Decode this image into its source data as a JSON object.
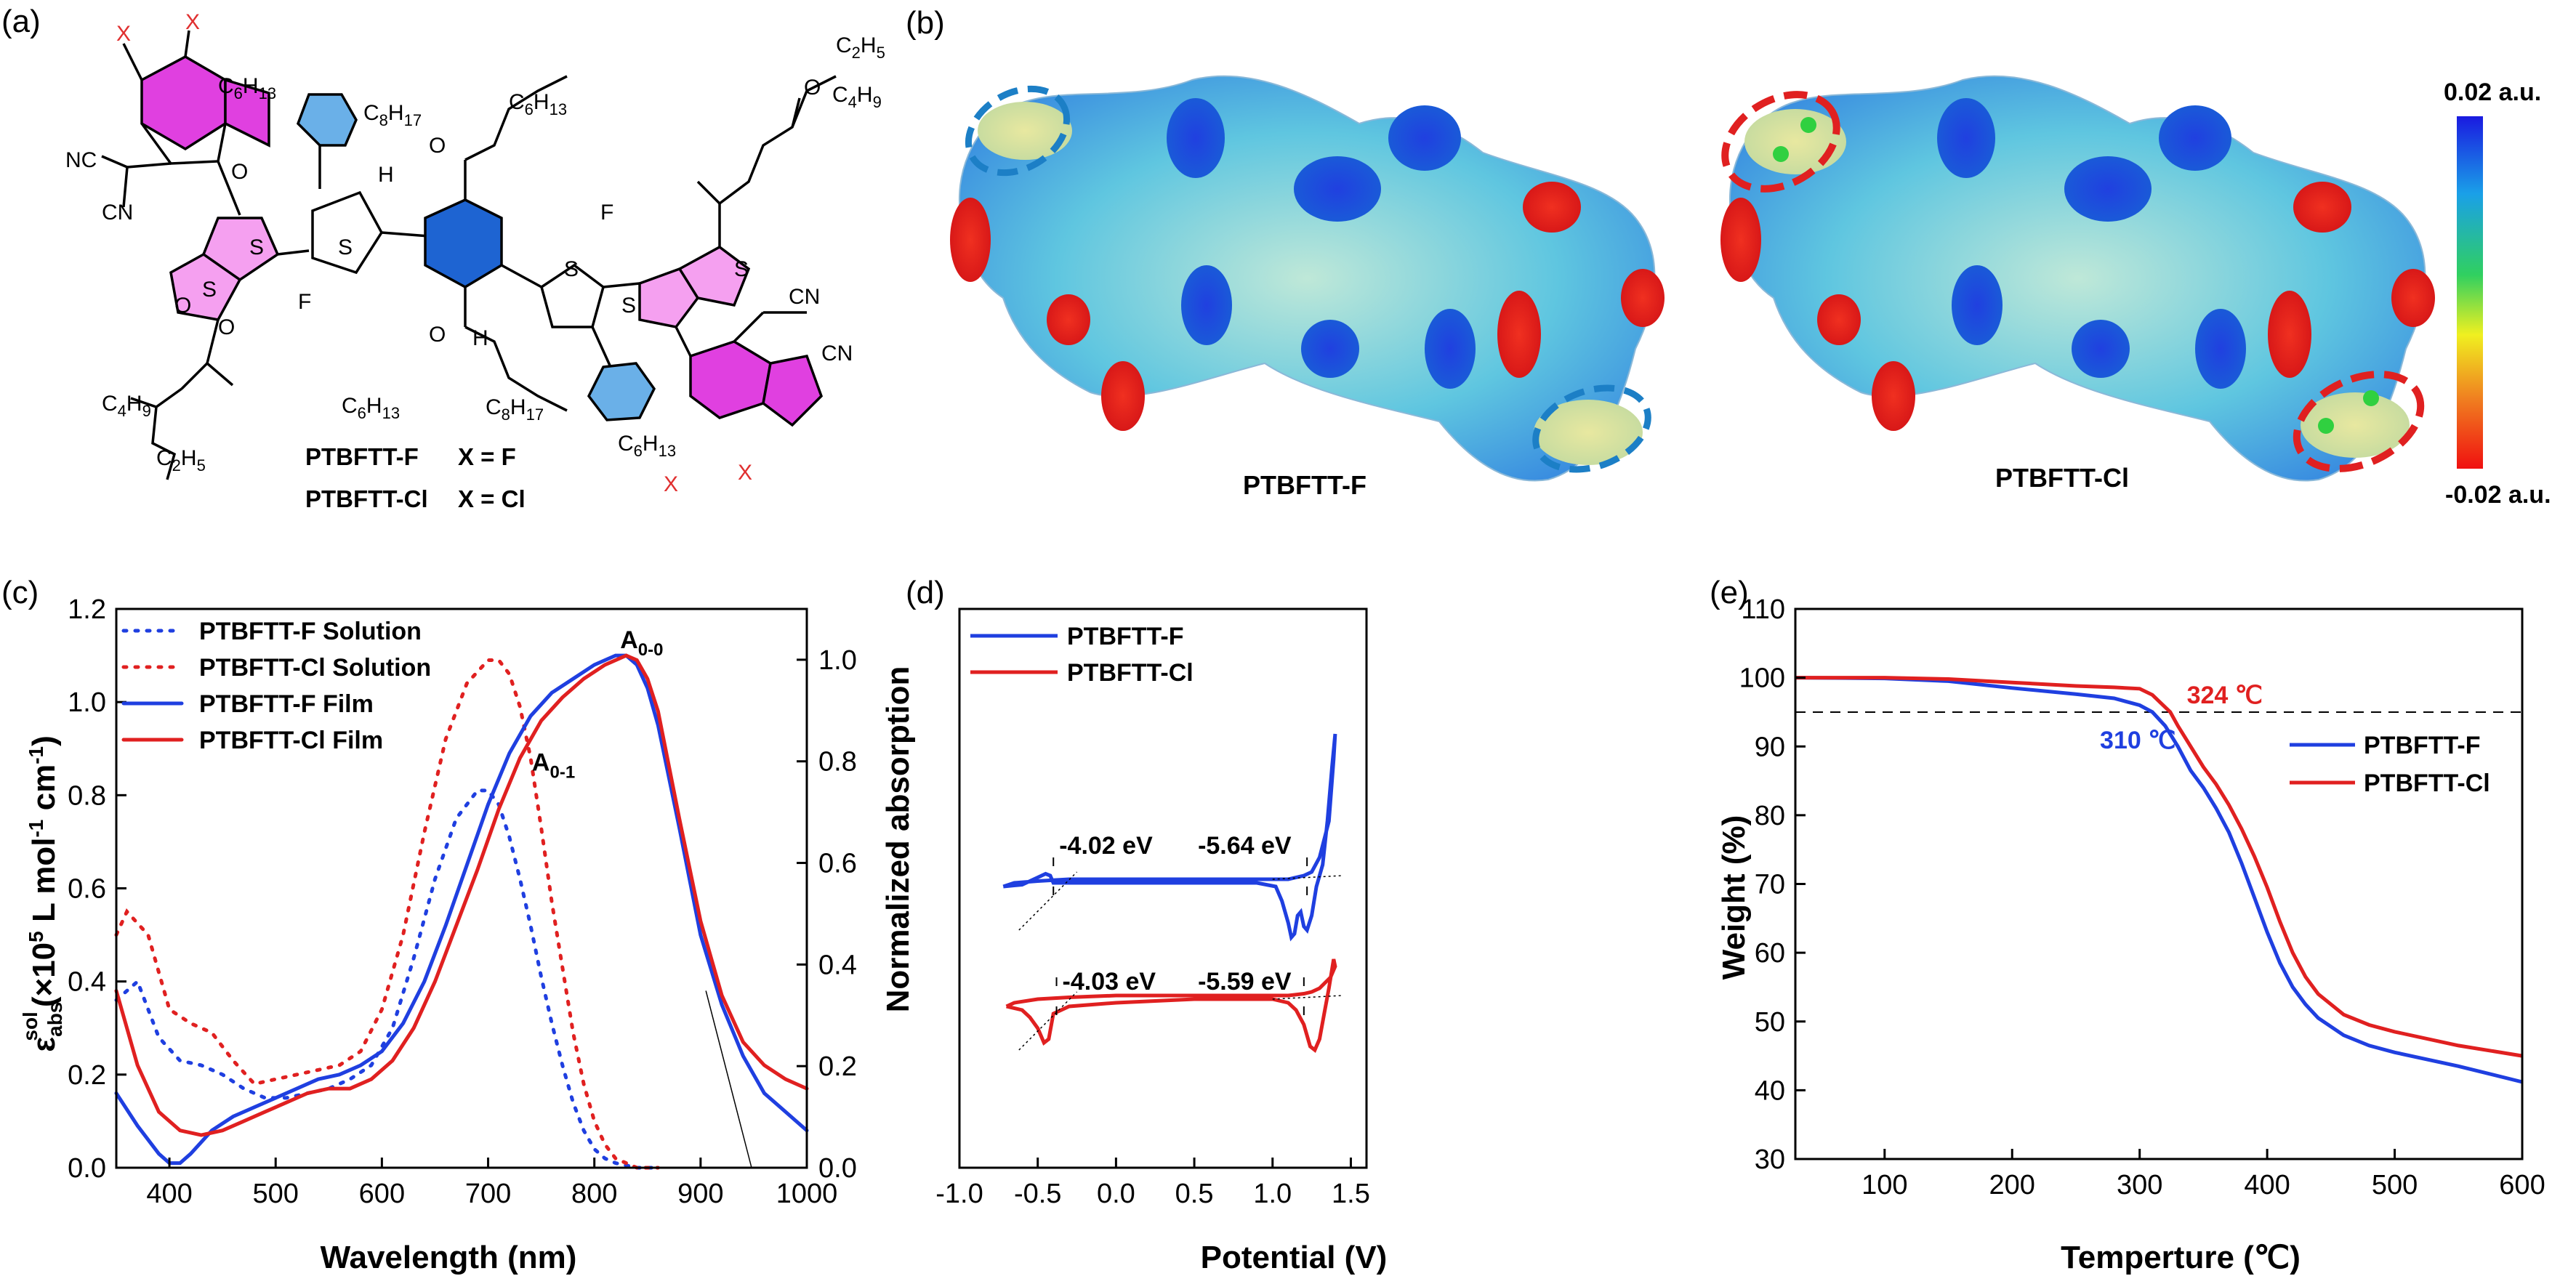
{
  "panels": {
    "a": "(a)",
    "b": "(b)",
    "c": "(c)",
    "d": "(d)",
    "e": "(e)"
  },
  "molecule": {
    "atoms": [
      "X",
      "X",
      "O",
      "O",
      "O",
      "O",
      "O",
      "O",
      "S",
      "S",
      "S",
      "S",
      "S",
      "S",
      "H",
      "H",
      "F",
      "F",
      "N",
      "N",
      "N",
      "N"
    ],
    "atom_labels": {
      "X": "X",
      "O": "O",
      "S": "S",
      "H": "H",
      "F": "F",
      "CN": "CN",
      "NC": "NC",
      "C6H13": "C6H13",
      "C8H17": "C8H17",
      "C4H9": "C4H9",
      "C2H5": "C2H5"
    },
    "subscript_labels": [
      {
        "main": "C",
        "sub": "6",
        "main2": "H",
        "sub2": "13"
      },
      {
        "main": "C",
        "sub": "8",
        "main2": "H",
        "sub2": "17"
      },
      {
        "main": "C",
        "sub": "4",
        "main2": "H",
        "sub2": "9"
      },
      {
        "main": "C",
        "sub": "2",
        "main2": "H",
        "sub2": "5"
      }
    ],
    "legend": [
      {
        "name": "PTBFTT-F",
        "x": "X = F"
      },
      {
        "name": "PTBFTT-Cl",
        "x": "X = Cl"
      }
    ],
    "colors": {
      "fluorinated_ring": "#e040e0",
      "thiophene": "#f5a0f0",
      "center": "#1e64d2",
      "phenyl": "#6ab0e8",
      "x_atom": "#e03030"
    }
  },
  "esp": {
    "labels": [
      "PTBFTT-F",
      "PTBFTT-Cl"
    ],
    "scale_top": "0.02 a.u.",
    "scale_bottom": "-0.02 a.u.",
    "highlight_colors": {
      "PTBFTT-F": "#1c7fc6",
      "PTBFTT-Cl": "#e02020"
    }
  },
  "chart_data": [
    {
      "id": "c",
      "type": "line",
      "xlabel": "Wavelength (nm)",
      "ylabel_left_parts": [
        "ε",
        "abs",
        "sol",
        "(×10",
        "5",
        " L mol",
        "-1",
        " cm",
        "-1",
        ")"
      ],
      "ylabel_right": "Normalized absorption",
      "xlim": [
        350,
        1000
      ],
      "ylim_left": [
        0,
        1.2
      ],
      "ylim_right": [
        0,
        1.1
      ],
      "xticks": [
        400,
        500,
        600,
        700,
        800,
        900,
        1000
      ],
      "yticks_left": [
        0.0,
        0.2,
        0.4,
        0.6,
        0.8,
        1.0,
        1.2
      ],
      "yticks_right": [
        0.0,
        0.2,
        0.4,
        0.6,
        0.8,
        1.0
      ],
      "annotations": [
        {
          "text": "A",
          "sub": "0-0",
          "x": 838,
          "y": 1.1
        },
        {
          "text": "A",
          "sub": "0-1",
          "x": 755,
          "y": 0.9
        }
      ],
      "series": [
        {
          "name": "PTBFTT-F Solution",
          "color": "#1f3fe0",
          "dash": true,
          "axis": "left",
          "x": [
            350,
            370,
            390,
            410,
            430,
            450,
            470,
            490,
            510,
            530,
            550,
            570,
            590,
            610,
            630,
            650,
            670,
            690,
            700,
            710,
            720,
            730,
            740,
            750,
            760,
            770,
            780,
            790,
            800,
            810,
            820,
            840,
            860
          ],
          "y": [
            0.36,
            0.4,
            0.28,
            0.23,
            0.22,
            0.2,
            0.17,
            0.15,
            0.15,
            0.16,
            0.17,
            0.19,
            0.22,
            0.3,
            0.45,
            0.62,
            0.75,
            0.81,
            0.81,
            0.78,
            0.71,
            0.62,
            0.52,
            0.41,
            0.31,
            0.22,
            0.14,
            0.08,
            0.04,
            0.02,
            0.01,
            0.0,
            0.0
          ]
        },
        {
          "name": "PTBFTT-Cl Solution",
          "color": "#e02020",
          "dash": true,
          "axis": "left",
          "x": [
            350,
            360,
            380,
            400,
            420,
            440,
            460,
            480,
            500,
            520,
            540,
            560,
            580,
            600,
            620,
            640,
            660,
            680,
            700,
            710,
            720,
            730,
            740,
            750,
            760,
            770,
            780,
            790,
            800,
            810,
            820,
            830,
            840,
            860
          ],
          "y": [
            0.5,
            0.55,
            0.5,
            0.34,
            0.31,
            0.29,
            0.23,
            0.18,
            0.19,
            0.2,
            0.21,
            0.22,
            0.25,
            0.34,
            0.5,
            0.72,
            0.92,
            1.04,
            1.09,
            1.09,
            1.06,
            0.99,
            0.88,
            0.73,
            0.57,
            0.43,
            0.29,
            0.18,
            0.1,
            0.05,
            0.02,
            0.01,
            0.0,
            0.0
          ]
        },
        {
          "name": "PTBFTT-F Film",
          "color": "#1f3fe0",
          "dash": false,
          "axis": "left",
          "x": [
            350,
            370,
            390,
            400,
            410,
            420,
            440,
            460,
            480,
            500,
            520,
            540,
            560,
            580,
            600,
            620,
            640,
            660,
            680,
            700,
            720,
            740,
            760,
            780,
            800,
            820,
            830,
            840,
            850,
            860,
            880,
            900,
            920,
            940,
            960,
            980,
            1000
          ],
          "y": [
            0.16,
            0.09,
            0.03,
            0.01,
            0.01,
            0.03,
            0.08,
            0.11,
            0.13,
            0.15,
            0.17,
            0.19,
            0.2,
            0.22,
            0.25,
            0.31,
            0.4,
            0.52,
            0.65,
            0.78,
            0.89,
            0.97,
            1.02,
            1.05,
            1.08,
            1.1,
            1.1,
            1.08,
            1.03,
            0.95,
            0.73,
            0.5,
            0.35,
            0.24,
            0.16,
            0.12,
            0.08
          ]
        },
        {
          "name": "PTBFTT-Cl Film",
          "color": "#e02020",
          "dash": false,
          "axis": "left",
          "x": [
            350,
            370,
            390,
            410,
            430,
            450,
            470,
            490,
            510,
            530,
            550,
            570,
            590,
            610,
            630,
            650,
            670,
            690,
            710,
            730,
            750,
            770,
            790,
            810,
            830,
            840,
            850,
            860,
            880,
            900,
            920,
            940,
            960,
            980,
            1000
          ],
          "y": [
            0.38,
            0.22,
            0.12,
            0.08,
            0.07,
            0.08,
            0.1,
            0.12,
            0.14,
            0.16,
            0.17,
            0.17,
            0.19,
            0.23,
            0.3,
            0.4,
            0.52,
            0.64,
            0.77,
            0.88,
            0.96,
            1.01,
            1.05,
            1.08,
            1.1,
            1.09,
            1.05,
            0.98,
            0.75,
            0.53,
            0.37,
            0.27,
            0.22,
            0.19,
            0.17
          ]
        }
      ]
    },
    {
      "id": "d",
      "type": "line",
      "xlabel": "Potential (V)",
      "xlim": [
        -1.0,
        1.6
      ],
      "xticks": [
        -1.0,
        -0.5,
        0.0,
        0.5,
        1.0,
        1.5
      ],
      "annotations": [
        {
          "text": "-4.02 eV",
          "series": "PTBFTT-F",
          "x": -0.4
        },
        {
          "text": "-5.64 eV",
          "series": "PTBFTT-F",
          "x": 1.22
        },
        {
          "text": "-4.03 eV",
          "series": "PTBFTT-Cl",
          "x": -0.38
        },
        {
          "text": "-5.59 eV",
          "series": "PTBFTT-Cl",
          "x": 1.2
        }
      ],
      "series": [
        {
          "name": "PTBFTT-F",
          "color": "#1f3fe0",
          "x": [
            -0.72,
            -0.6,
            -0.5,
            -0.45,
            -0.42,
            -0.4,
            -0.3,
            0.0,
            0.5,
            0.9,
            1.02,
            1.06,
            1.1,
            1.12,
            1.14,
            1.16,
            1.18,
            1.2,
            1.22,
            1.25,
            1.28,
            1.32,
            1.35,
            1.38,
            1.4,
            1.39,
            1.36,
            1.3,
            1.25,
            1.2,
            1.1,
            0.9,
            0.5,
            0.0,
            -0.3,
            -0.5,
            -0.65,
            -0.72
          ],
          "y": [
            0,
            0.005,
            0.025,
            0.035,
            0.03,
            0.01,
            0.01,
            0.01,
            0.01,
            0.01,
            0.0,
            -0.04,
            -0.1,
            -0.14,
            -0.13,
            -0.08,
            -0.07,
            -0.11,
            -0.12,
            -0.08,
            0.0,
            0.06,
            0.18,
            0.33,
            0.42,
            0.35,
            0.18,
            0.08,
            0.04,
            0.03,
            0.02,
            0.02,
            0.02,
            0.02,
            0.02,
            0.015,
            0.01,
            0
          ]
        },
        {
          "name": "PTBFTT-Cl",
          "color": "#e02020",
          "x": [
            -0.7,
            -0.6,
            -0.55,
            -0.5,
            -0.46,
            -0.43,
            -0.4,
            -0.3,
            0.0,
            0.5,
            1.0,
            1.1,
            1.15,
            1.2,
            1.24,
            1.27,
            1.3,
            1.33,
            1.36,
            1.39,
            1.4,
            1.37,
            1.3,
            1.25,
            1.2,
            1.1,
            0.5,
            0.0,
            -0.3,
            -0.5,
            -0.65,
            -0.7
          ],
          "y": [
            0,
            -0.01,
            -0.03,
            -0.06,
            -0.1,
            -0.09,
            -0.02,
            0.0,
            0.01,
            0.02,
            0.02,
            0.01,
            -0.01,
            -0.05,
            -0.11,
            -0.12,
            -0.09,
            -0.02,
            0.05,
            0.13,
            0.11,
            0.08,
            0.05,
            0.04,
            0.035,
            0.03,
            0.03,
            0.03,
            0.025,
            0.02,
            0.01,
            0
          ]
        }
      ]
    },
    {
      "id": "e",
      "type": "line",
      "xlabel": "Temperture (℃)",
      "ylabel": "Weight (%)",
      "xlim": [
        30,
        600
      ],
      "ylim": [
        30,
        110
      ],
      "xticks": [
        100,
        200,
        300,
        400,
        500,
        600
      ],
      "yticks": [
        30,
        40,
        50,
        60,
        70,
        80,
        90,
        100,
        110
      ],
      "reference_line": 95,
      "annotations": [
        {
          "text": "310 ℃",
          "color": "#1f3fe0",
          "x": 310,
          "y": 95
        },
        {
          "text": "324 ℃",
          "color": "#e02020",
          "x": 324,
          "y": 95
        }
      ],
      "series": [
        {
          "name": "PTBFTT-F",
          "color": "#1f3fe0",
          "x": [
            30,
            100,
            150,
            200,
            250,
            280,
            300,
            310,
            320,
            330,
            340,
            350,
            360,
            370,
            380,
            390,
            400,
            410,
            420,
            430,
            440,
            460,
            480,
            500,
            550,
            600
          ],
          "y": [
            100,
            99.9,
            99.5,
            98.5,
            97.6,
            97.0,
            96.0,
            95.0,
            93.0,
            90.0,
            86.5,
            84.0,
            81.0,
            77.5,
            73.0,
            68.0,
            63.0,
            58.5,
            55.0,
            52.5,
            50.5,
            48.0,
            46.5,
            45.5,
            43.5,
            41.2
          ]
        },
        {
          "name": "PTBFTT-Cl",
          "color": "#e02020",
          "x": [
            30,
            100,
            150,
            200,
            250,
            280,
            300,
            310,
            324,
            330,
            340,
            350,
            360,
            370,
            380,
            390,
            400,
            410,
            420,
            430,
            440,
            460,
            480,
            500,
            550,
            600
          ],
          "y": [
            100,
            100,
            99.8,
            99.3,
            98.8,
            98.6,
            98.4,
            97.5,
            95.0,
            93.0,
            90.0,
            87.0,
            84.5,
            81.5,
            78.0,
            74.0,
            69.5,
            64.5,
            60.0,
            56.5,
            54.0,
            51.0,
            49.5,
            48.5,
            46.5,
            45.0
          ]
        }
      ]
    }
  ]
}
